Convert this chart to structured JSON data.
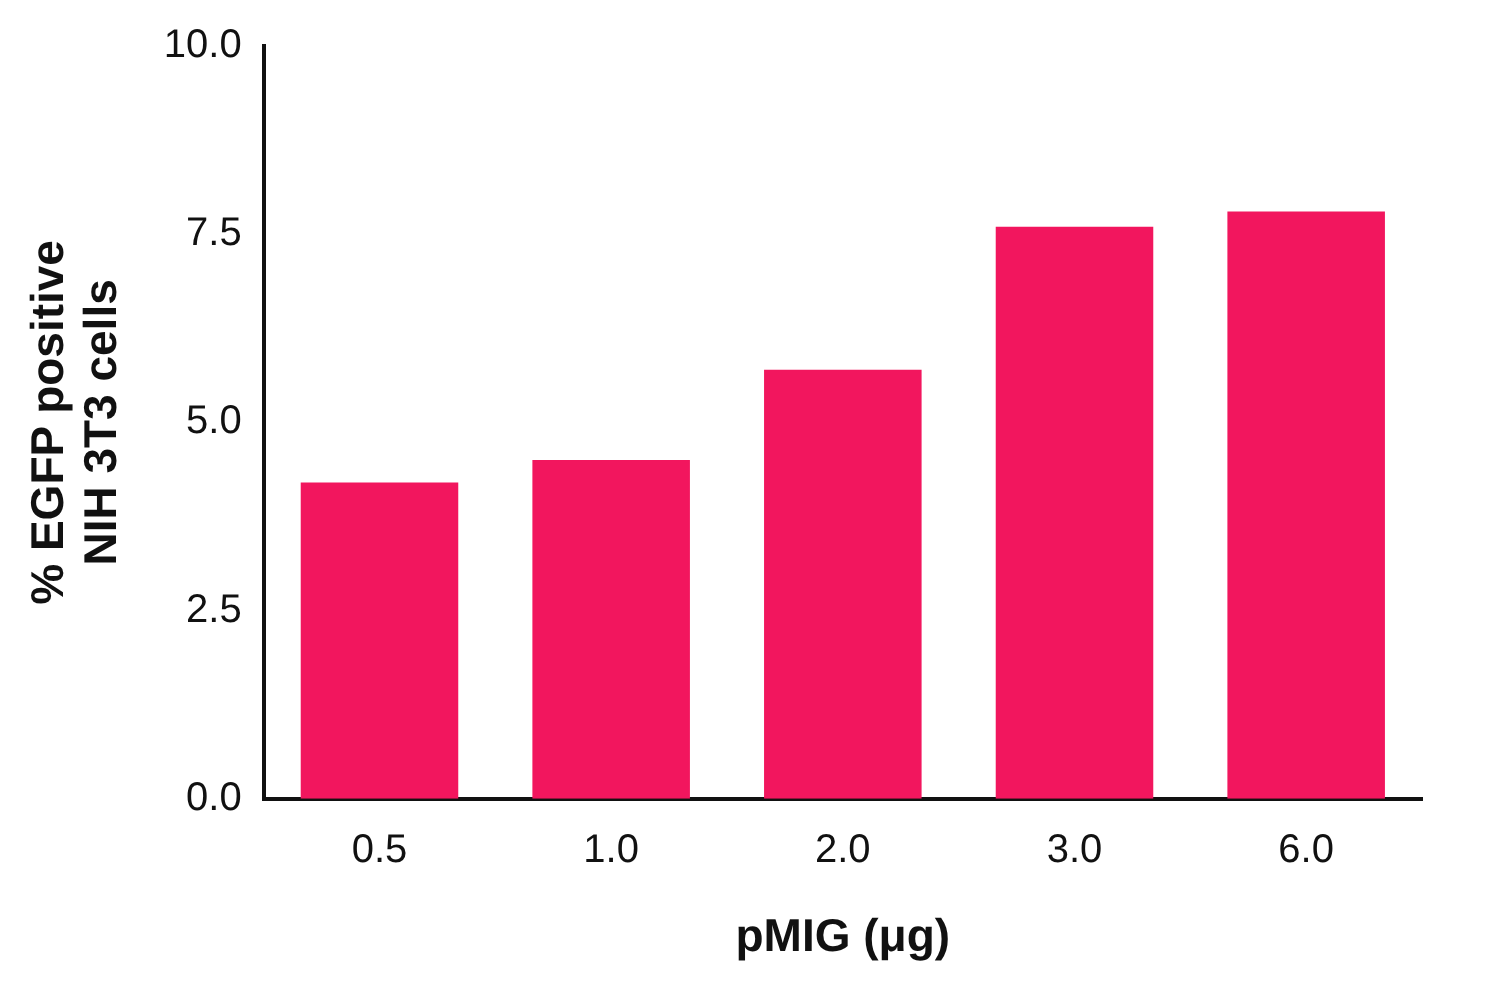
{
  "chart_data": {
    "type": "bar",
    "xlabel": "pMIG (μg)",
    "ylabel": "% EGFP positive\nNIH 3T3 cells",
    "categories": [
      "0.5",
      "1.0",
      "2.0",
      "3.0",
      "6.0"
    ],
    "values": [
      4.2,
      4.5,
      5.7,
      7.6,
      7.8
    ],
    "color": "#f2165e",
    "ylim": [
      0,
      10
    ],
    "yticks": [
      {
        "value": 0,
        "label": "0.0"
      },
      {
        "value": 2.5,
        "label": "2.5"
      },
      {
        "value": 5,
        "label": "5.0"
      },
      {
        "value": 7.5,
        "label": "7.5"
      },
      {
        "value": 10,
        "label": "10.0"
      }
    ],
    "grid": false,
    "legend": false
  }
}
